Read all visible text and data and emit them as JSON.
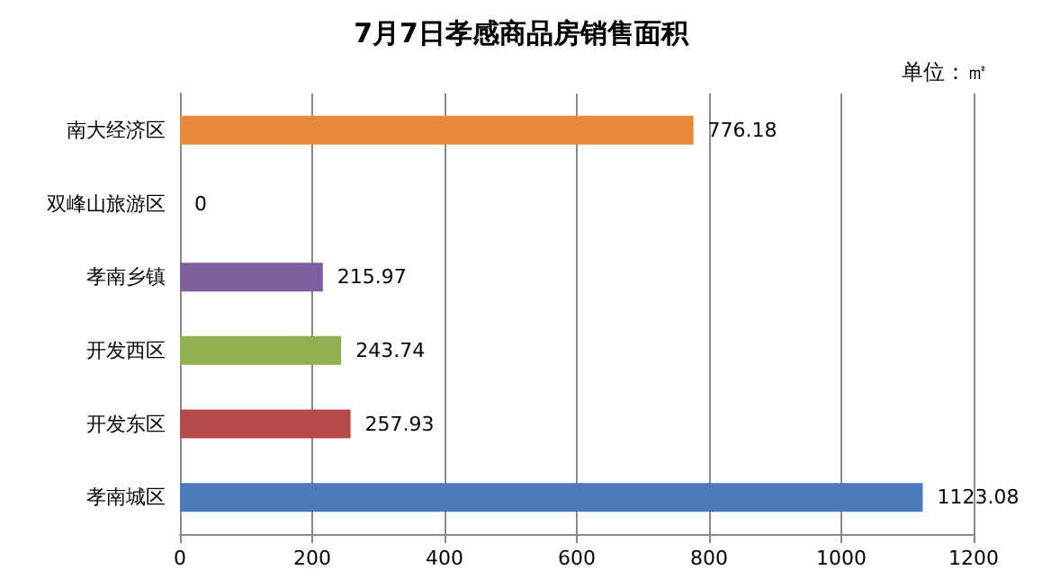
{
  "chart_data": {
    "type": "bar",
    "orientation": "horizontal",
    "title": "7月7日孝感商品房销售面积",
    "annotations": [
      "单位：㎡"
    ],
    "categories": [
      "南大经济区",
      "双峰山旅游区",
      "孝南乡镇",
      "开发西区",
      "开发东区",
      "孝南城区"
    ],
    "values": [
      776.18,
      0,
      215.97,
      243.74,
      257.93,
      1123.08
    ],
    "colors": [
      "#e8883a",
      "#4bacc6",
      "#7f5ea0",
      "#8fb050",
      "#b34a47",
      "#4a7ab8"
    ],
    "xlim": [
      0,
      1200
    ],
    "xticks": [
      0,
      200,
      400,
      600,
      800,
      1000,
      1200
    ],
    "grid": "x",
    "data_labels": true
  }
}
